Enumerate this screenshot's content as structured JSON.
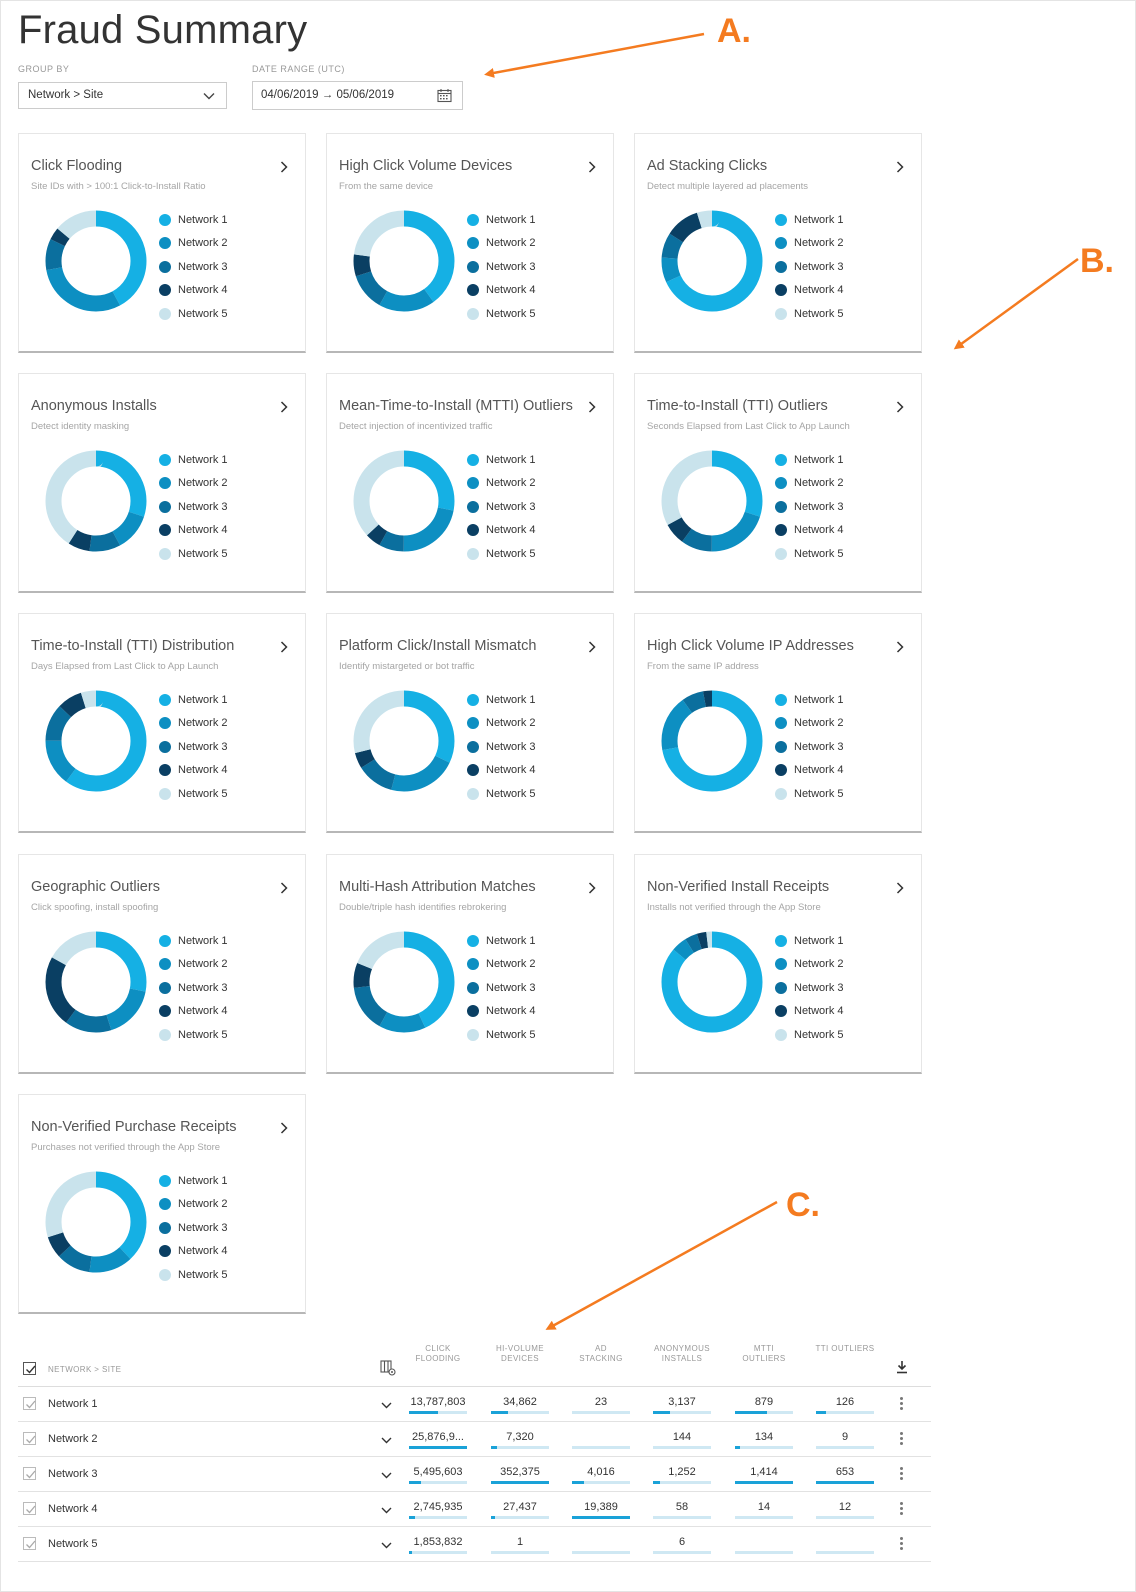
{
  "page": {
    "title": "Fraud Summary"
  },
  "filters": {
    "group_by_label": "GROUP BY",
    "group_by_value": "Network > Site",
    "date_label": "DATE RANGE (UTC)",
    "date_value": "04/06/2019 → 05/06/2019"
  },
  "colors": [
    "#15b0e4",
    "#0d8fc2",
    "#0b6f9e",
    "#0a3f63",
    "#c9e3ec"
  ],
  "legend_labels": [
    "Network 1",
    "Network 2",
    "Network 3",
    "Network 4",
    "Network 5"
  ],
  "cards": [
    {
      "title": "Click Flooding",
      "subtitle": "Site IDs with > 100:1 Click-to-Install Ratio",
      "values": [
        42,
        30,
        10,
        4,
        14
      ]
    },
    {
      "title": "High Click Volume Devices",
      "subtitle": "From the same device",
      "values": [
        40,
        18,
        12,
        7,
        23
      ]
    },
    {
      "title": "Ad Stacking Clicks",
      "subtitle": "Detect multiple layered ad placements",
      "values": [
        68,
        8,
        8,
        11,
        5
      ]
    },
    {
      "title": "Anonymous Installs",
      "subtitle": "Detect identity masking",
      "values": [
        30,
        12,
        10,
        7,
        41
      ]
    },
    {
      "title": "Mean-Time-to-Install (MTTI) Outliers",
      "subtitle": "Detect injection of incentivized traffic",
      "values": [
        28,
        22,
        8,
        5,
        37
      ]
    },
    {
      "title": "Time-to-Install (TTI) Outliers",
      "subtitle": "Seconds Elapsed from Last Click to App Launch",
      "values": [
        30,
        20,
        10,
        7,
        33
      ]
    },
    {
      "title": "Time-to-Install (TTI) Distribution",
      "subtitle": "Days Elapsed from Last Click to App Launch",
      "values": [
        60,
        15,
        12,
        8,
        5
      ]
    },
    {
      "title": "Platform Click/Install Mismatch",
      "subtitle": "Identify mistargeted or bot traffic",
      "values": [
        32,
        22,
        12,
        5,
        29
      ]
    },
    {
      "title": "High Click Volume IP Addresses",
      "subtitle": "From the same IP address",
      "values": [
        72,
        18,
        7,
        3,
        0
      ]
    },
    {
      "title": "Geographic Outliers",
      "subtitle": "Click spoofing, install spoofing",
      "values": [
        28,
        17,
        15,
        23,
        17
      ]
    },
    {
      "title": "Multi-Hash Attribution Matches",
      "subtitle": "Double/triple hash identifies rebrokering",
      "values": [
        43,
        15,
        15,
        8,
        19
      ]
    },
    {
      "title": "Non-Verified Install Receipts",
      "subtitle": "Installs not verified through the App Store",
      "values": [
        86,
        5,
        4,
        3,
        2
      ]
    },
    {
      "title": "Non-Verified Purchase Receipts",
      "subtitle": "Purchases not verified through the App Store",
      "values": [
        38,
        14,
        11,
        7,
        30
      ]
    }
  ],
  "annotations": {
    "a": "A.",
    "b": "B.",
    "c": "C."
  },
  "table": {
    "name_header": "NETWORK > SITE",
    "columns": [
      {
        "line1": "CLICK",
        "line2": "FLOODING"
      },
      {
        "line1": "HI-VOLUME",
        "line2": "DEVICES"
      },
      {
        "line1": "AD",
        "line2": "STACKING"
      },
      {
        "line1": "ANONYMOUS",
        "line2": "INSTALLS"
      },
      {
        "line1": "MTTI",
        "line2": "OUTLIERS"
      },
      {
        "line1": "TTI OUTLIERS",
        "line2": ""
      }
    ],
    "rows": [
      {
        "name": "Network 1",
        "cells": [
          "13,787,803",
          "34,862",
          "23",
          "3,137",
          "879",
          "126"
        ],
        "fills": [
          0.5,
          0.3,
          0.0,
          0.3,
          0.55,
          0.18
        ]
      },
      {
        "name": "Network 2",
        "cells": [
          "25,876,9...",
          "7,320",
          "",
          "144",
          "134",
          "9"
        ],
        "fills": [
          1.0,
          0.1,
          0.0,
          0.0,
          0.08,
          0.0
        ]
      },
      {
        "name": "Network 3",
        "cells": [
          "5,495,603",
          "352,375",
          "4,016",
          "1,252",
          "1,414",
          "653"
        ],
        "fills": [
          0.2,
          1.0,
          0.2,
          0.12,
          1.0,
          1.0
        ]
      },
      {
        "name": "Network 4",
        "cells": [
          "2,745,935",
          "27,437",
          "19,389",
          "58",
          "14",
          "12"
        ],
        "fills": [
          0.1,
          0.07,
          1.0,
          0.0,
          0.0,
          0.0
        ]
      },
      {
        "name": "Network 5",
        "cells": [
          "1,853,832",
          "1",
          "",
          "6",
          "",
          ""
        ],
        "fills": [
          0.06,
          0.0,
          0.0,
          0.0,
          0.0,
          0.0
        ]
      }
    ]
  }
}
